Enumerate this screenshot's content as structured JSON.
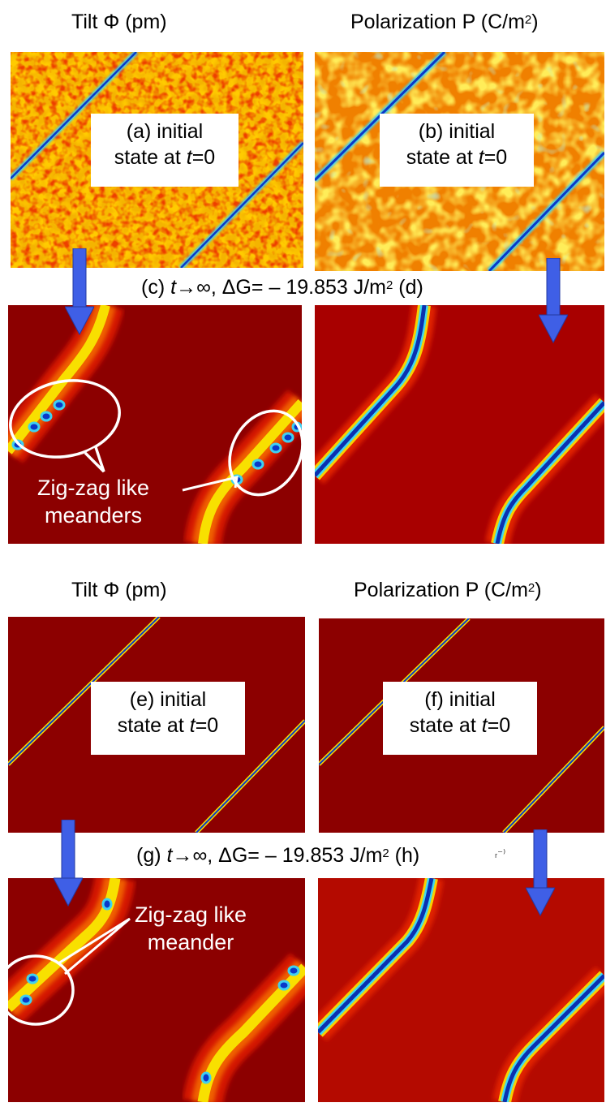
{
  "top_section": {
    "header_left": "Tilt Φ (pm)",
    "header_right_main": "Polarization P (C/m",
    "header_right_sup": "2",
    "header_right_end": ")",
    "panel_a": {
      "letter": "(a)",
      "word": "initial",
      "line2_prefix": "state at ",
      "t": "t",
      "line2_suffix": "=0"
    },
    "panel_b": {
      "letter": "(b)",
      "word": "initial",
      "line2_prefix": "state at ",
      "t": "t",
      "line2_suffix": "=0"
    },
    "middle": {
      "left": "(c) ",
      "t": "t",
      "rest": "→∞, ΔG= – 19.853 J/m",
      "sup": "2",
      "right": " (d)"
    },
    "callout": {
      "line1": "Zig-zag like",
      "line2": "meanders"
    }
  },
  "bottom_section": {
    "header_left": "Tilt Φ (pm)",
    "header_right_main": "Polarization P (C/m",
    "header_right_sup": "2",
    "header_right_end": ")",
    "panel_e": {
      "letter": "(e)",
      "word": "initial",
      "line2_prefix": "state at ",
      "t": "t",
      "line2_suffix": "=0"
    },
    "panel_f": {
      "letter": "(f)",
      "word": "initial",
      "line2_prefix": "state at ",
      "t": "t",
      "line2_suffix": "=0"
    },
    "middle": {
      "left": "(g) ",
      "t": "t",
      "rest": "→∞, ΔG= – 19.853 J/m",
      "sup": "2",
      "right": " (h)"
    },
    "stray_mark": "ᵣ⁻⁾",
    "callout": {
      "line1": "Zig-zag like",
      "line2": "meander"
    }
  },
  "colors": {
    "dark_red": "#8c0000",
    "red": "#c81400",
    "noise_orange": "#f5a000",
    "wall_blue": "#0a38c8",
    "wall_cyan": "#3fd0f0",
    "arrow_blue": "#3f5fe6"
  }
}
